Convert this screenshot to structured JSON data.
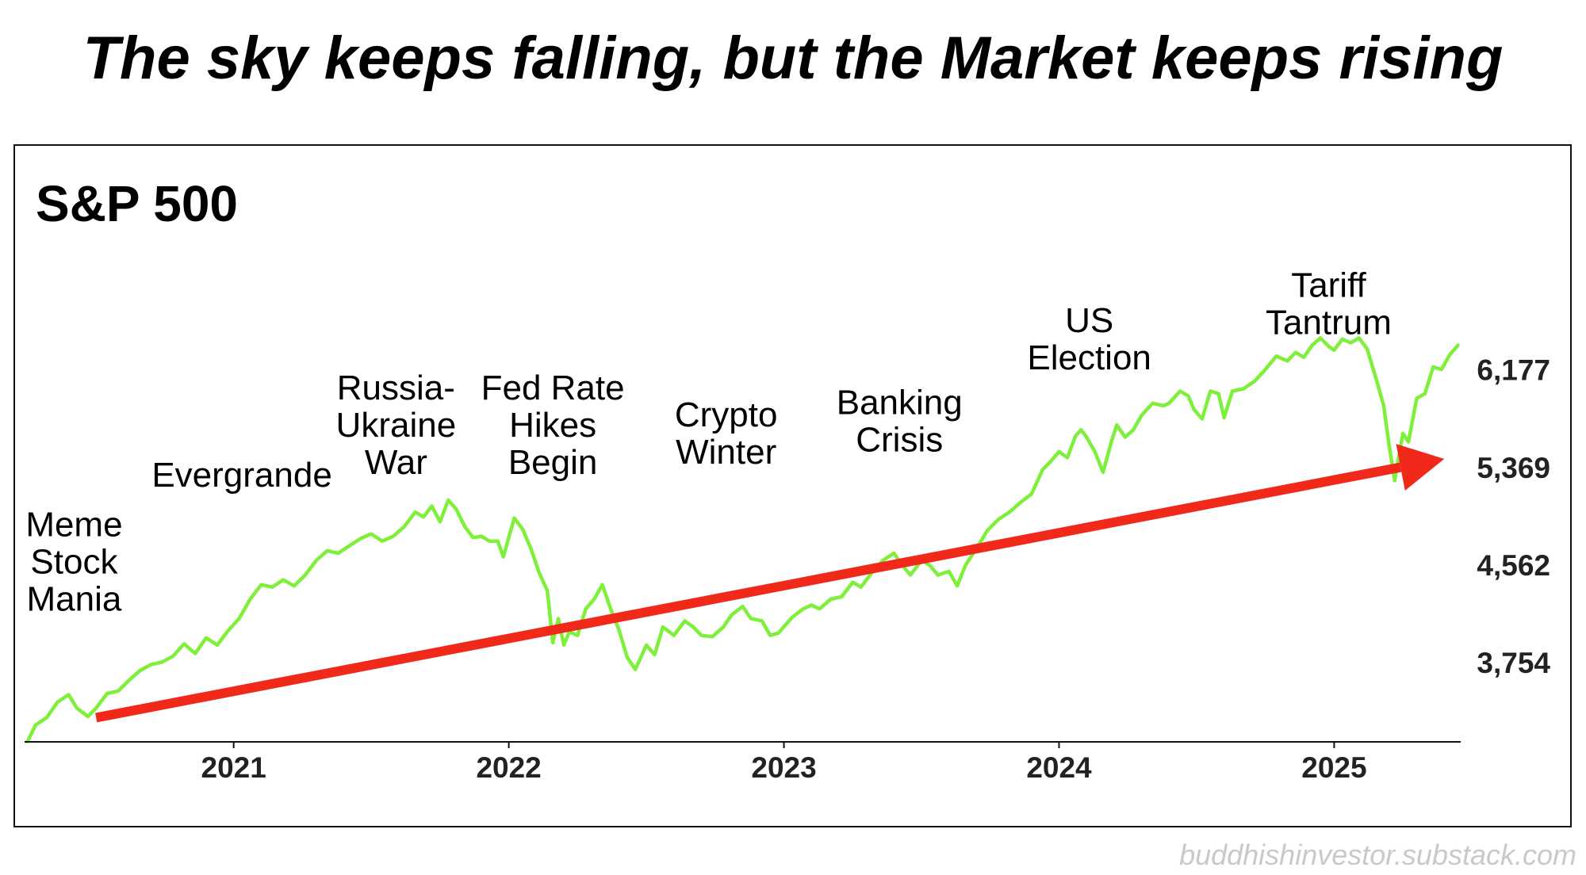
{
  "headline": "The sky keeps falling, but the Market keeps rising",
  "watermark": "buddhishinvestor.substack.com",
  "colors": {
    "line": "#7ff03a",
    "arrow": "#f0291b",
    "text": "#000000",
    "axis": "#111111"
  },
  "chart_data": {
    "type": "line",
    "title": "S&P 500",
    "xlabel": "",
    "ylabel": "",
    "xlim": [
      2020.24,
      2025.46
    ],
    "ylim": [
      3100,
      6600
    ],
    "x_ticks": [
      {
        "value": 2021,
        "label": "2021"
      },
      {
        "value": 2022,
        "label": "2022"
      },
      {
        "value": 2023,
        "label": "2023"
      },
      {
        "value": 2024,
        "label": "2024"
      },
      {
        "value": 2025,
        "label": "2025"
      }
    ],
    "y_ticks": [
      {
        "value": 3754,
        "label": "3,754"
      },
      {
        "value": 4562,
        "label": "4,562"
      },
      {
        "value": 5369,
        "label": "5,369"
      },
      {
        "value": 6177,
        "label": "6,177"
      }
    ],
    "series": [
      {
        "name": "S&P 500",
        "points": [
          [
            2020.25,
            3100
          ],
          [
            2020.28,
            3240
          ],
          [
            2020.32,
            3300
          ],
          [
            2020.36,
            3430
          ],
          [
            2020.4,
            3490
          ],
          [
            2020.43,
            3380
          ],
          [
            2020.47,
            3310
          ],
          [
            2020.5,
            3380
          ],
          [
            2020.54,
            3500
          ],
          [
            2020.58,
            3520
          ],
          [
            2020.62,
            3610
          ],
          [
            2020.66,
            3690
          ],
          [
            2020.7,
            3740
          ],
          [
            2020.74,
            3760
          ],
          [
            2020.78,
            3810
          ],
          [
            2020.82,
            3910
          ],
          [
            2020.86,
            3830
          ],
          [
            2020.9,
            3960
          ],
          [
            2020.94,
            3900
          ],
          [
            2020.98,
            4020
          ],
          [
            2021.02,
            4120
          ],
          [
            2021.06,
            4280
          ],
          [
            2021.1,
            4400
          ],
          [
            2021.14,
            4380
          ],
          [
            2021.18,
            4440
          ],
          [
            2021.22,
            4390
          ],
          [
            2021.26,
            4480
          ],
          [
            2021.3,
            4600
          ],
          [
            2021.34,
            4680
          ],
          [
            2021.38,
            4660
          ],
          [
            2021.42,
            4720
          ],
          [
            2021.46,
            4780
          ],
          [
            2021.5,
            4820
          ],
          [
            2021.54,
            4760
          ],
          [
            2021.58,
            4800
          ],
          [
            2021.62,
            4880
          ],
          [
            2021.66,
            5000
          ],
          [
            2021.69,
            4960
          ],
          [
            2021.72,
            5050
          ],
          [
            2021.75,
            4920
          ],
          [
            2021.78,
            5100
          ],
          [
            2021.81,
            5020
          ],
          [
            2021.84,
            4880
          ],
          [
            2021.87,
            4790
          ],
          [
            2021.9,
            4800
          ],
          [
            2021.93,
            4760
          ],
          [
            2021.96,
            4760
          ],
          [
            2021.98,
            4630
          ],
          [
            2022.02,
            4950
          ],
          [
            2022.05,
            4860
          ],
          [
            2022.08,
            4700
          ],
          [
            2022.11,
            4500
          ],
          [
            2022.14,
            4350
          ],
          [
            2022.16,
            3920
          ],
          [
            2022.18,
            4120
          ],
          [
            2022.2,
            3900
          ],
          [
            2022.22,
            4010
          ],
          [
            2022.25,
            3980
          ],
          [
            2022.28,
            4200
          ],
          [
            2022.31,
            4280
          ],
          [
            2022.34,
            4400
          ],
          [
            2022.37,
            4200
          ],
          [
            2022.4,
            4030
          ],
          [
            2022.43,
            3800
          ],
          [
            2022.46,
            3700
          ],
          [
            2022.5,
            3900
          ],
          [
            2022.53,
            3820
          ],
          [
            2022.56,
            4050
          ],
          [
            2022.6,
            3980
          ],
          [
            2022.64,
            4100
          ],
          [
            2022.67,
            4050
          ],
          [
            2022.7,
            3980
          ],
          [
            2022.74,
            3970
          ],
          [
            2022.78,
            4050
          ],
          [
            2022.81,
            4150
          ],
          [
            2022.85,
            4220
          ],
          [
            2022.88,
            4120
          ],
          [
            2022.92,
            4100
          ],
          [
            2022.95,
            3980
          ],
          [
            2022.98,
            4000
          ],
          [
            2023.03,
            4130
          ],
          [
            2023.07,
            4200
          ],
          [
            2023.1,
            4230
          ],
          [
            2023.13,
            4200
          ],
          [
            2023.17,
            4280
          ],
          [
            2023.21,
            4300
          ],
          [
            2023.25,
            4420
          ],
          [
            2023.28,
            4380
          ],
          [
            2023.32,
            4500
          ],
          [
            2023.36,
            4600
          ],
          [
            2023.4,
            4660
          ],
          [
            2023.43,
            4560
          ],
          [
            2023.46,
            4480
          ],
          [
            2023.5,
            4600
          ],
          [
            2023.53,
            4560
          ],
          [
            2023.56,
            4480
          ],
          [
            2023.6,
            4510
          ],
          [
            2023.63,
            4390
          ],
          [
            2023.66,
            4560
          ],
          [
            2023.7,
            4700
          ],
          [
            2023.74,
            4850
          ],
          [
            2023.78,
            4940
          ],
          [
            2023.82,
            5000
          ],
          [
            2023.86,
            5080
          ],
          [
            2023.9,
            5150
          ],
          [
            2023.94,
            5350
          ],
          [
            2023.97,
            5420
          ],
          [
            2024.0,
            5500
          ],
          [
            2024.03,
            5450
          ],
          [
            2024.06,
            5630
          ],
          [
            2024.08,
            5680
          ],
          [
            2024.1,
            5620
          ],
          [
            2024.13,
            5500
          ],
          [
            2024.16,
            5330
          ],
          [
            2024.19,
            5580
          ],
          [
            2024.21,
            5720
          ],
          [
            2024.24,
            5620
          ],
          [
            2024.27,
            5680
          ],
          [
            2024.3,
            5800
          ],
          [
            2024.34,
            5900
          ],
          [
            2024.38,
            5880
          ],
          [
            2024.4,
            5900
          ],
          [
            2024.44,
            6000
          ],
          [
            2024.47,
            5960
          ],
          [
            2024.49,
            5850
          ],
          [
            2024.52,
            5770
          ],
          [
            2024.55,
            6000
          ],
          [
            2024.58,
            5980
          ],
          [
            2024.6,
            5780
          ],
          [
            2024.63,
            6000
          ],
          [
            2024.67,
            6020
          ],
          [
            2024.71,
            6080
          ],
          [
            2024.75,
            6180
          ],
          [
            2024.79,
            6290
          ],
          [
            2024.83,
            6250
          ],
          [
            2024.86,
            6320
          ],
          [
            2024.89,
            6280
          ],
          [
            2024.92,
            6380
          ],
          [
            2024.95,
            6440
          ],
          [
            2024.98,
            6370
          ],
          [
            2025.0,
            6340
          ],
          [
            2025.03,
            6430
          ],
          [
            2025.06,
            6400
          ],
          [
            2025.09,
            6440
          ],
          [
            2025.12,
            6350
          ],
          [
            2025.15,
            6120
          ],
          [
            2025.18,
            5880
          ],
          [
            2025.2,
            5550
          ],
          [
            2025.22,
            5260
          ],
          [
            2025.25,
            5650
          ],
          [
            2025.27,
            5580
          ],
          [
            2025.3,
            5940
          ],
          [
            2025.33,
            5980
          ],
          [
            2025.36,
            6200
          ],
          [
            2025.39,
            6180
          ],
          [
            2025.42,
            6300
          ],
          [
            2025.45,
            6380
          ]
        ]
      }
    ],
    "trend_arrow": {
      "from": [
        2020.5,
        3300
      ],
      "to": [
        2025.4,
        5440
      ]
    },
    "annotations": [
      {
        "lines": [
          "Meme",
          "Stock",
          "Mania"
        ],
        "x": 2020.42,
        "y": 4800
      },
      {
        "lines": [
          "Evergrande"
        ],
        "x": 2021.03,
        "y": 5210
      },
      {
        "lines": [
          "Russia-",
          "Ukraine",
          "War"
        ],
        "x": 2021.59,
        "y": 5930
      },
      {
        "lines": [
          "Fed Rate",
          "Hikes",
          "Begin"
        ],
        "x": 2022.16,
        "y": 5930
      },
      {
        "lines": [
          "Crypto",
          "Winter"
        ],
        "x": 2022.79,
        "y": 5710
      },
      {
        "lines": [
          "Banking",
          "Crisis"
        ],
        "x": 2023.42,
        "y": 5810
      },
      {
        "lines": [
          "US",
          "Election"
        ],
        "x": 2024.11,
        "y": 6490
      },
      {
        "lines": [
          "Tariff",
          "Tantrum"
        ],
        "x": 2024.98,
        "y": 6780
      }
    ]
  }
}
